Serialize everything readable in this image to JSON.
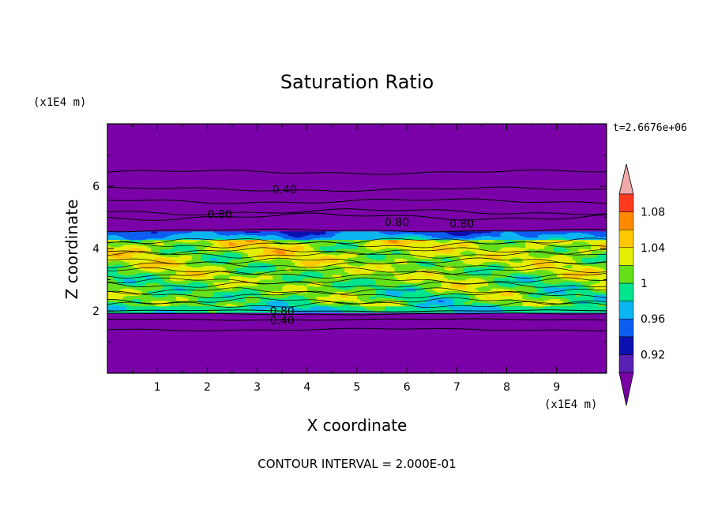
{
  "chart_data": {
    "type": "heatmap",
    "title": "Saturation Ratio",
    "xlabel": "X coordinate",
    "ylabel": "Z coordinate",
    "x_unit_label": "(x1E4 m)",
    "y_unit_label": "(x1E4 m)",
    "time_label": "t=2.6676e+06",
    "footer": "CONTOUR INTERVAL = 2.000E-01",
    "xlim": [
      0,
      10
    ],
    "ylim": [
      0,
      8
    ],
    "x_ticks": [
      1,
      2,
      3,
      4,
      5,
      6,
      7,
      8,
      9
    ],
    "x_tick_labels": [
      "1",
      "2",
      "3",
      "4",
      "5",
      "6",
      "7",
      "8",
      "9"
    ],
    "y_ticks": [
      2,
      4,
      6
    ],
    "y_tick_labels": [
      "2",
      "4",
      "6"
    ],
    "colorbar": {
      "levels": [
        0.9,
        0.92,
        0.94,
        0.96,
        0.98,
        1.0,
        1.02,
        1.04,
        1.06,
        1.08,
        1.1
      ],
      "tick_values": [
        0.92,
        0.96,
        1.0,
        1.04,
        1.08
      ],
      "tick_labels": [
        "0.92",
        "0.96",
        "1",
        "1.04",
        "1.08"
      ],
      "colors": [
        "#5a1fb5",
        "#0b10b0",
        "#0d5ef0",
        "#0bb5f0",
        "#00e48e",
        "#66e01a",
        "#e4ee00",
        "#ffc800",
        "#ff8a00",
        "#ff3a1e"
      ],
      "under_color": "#7a00a8",
      "over_color": "#f0a8a8"
    },
    "contour_labels": [
      {
        "text": "0.40",
        "x": 3.55,
        "z": 5.9
      },
      {
        "text": "0.80",
        "x": 2.25,
        "z": 5.1
      },
      {
        "text": "0.80",
        "x": 5.8,
        "z": 4.85
      },
      {
        "text": "0.80",
        "x": 7.1,
        "z": 4.8
      },
      {
        "text": "0.80",
        "x": 3.5,
        "z": 2.0
      },
      {
        "text": "0.40",
        "x": 3.5,
        "z": 1.7
      }
    ]
  }
}
